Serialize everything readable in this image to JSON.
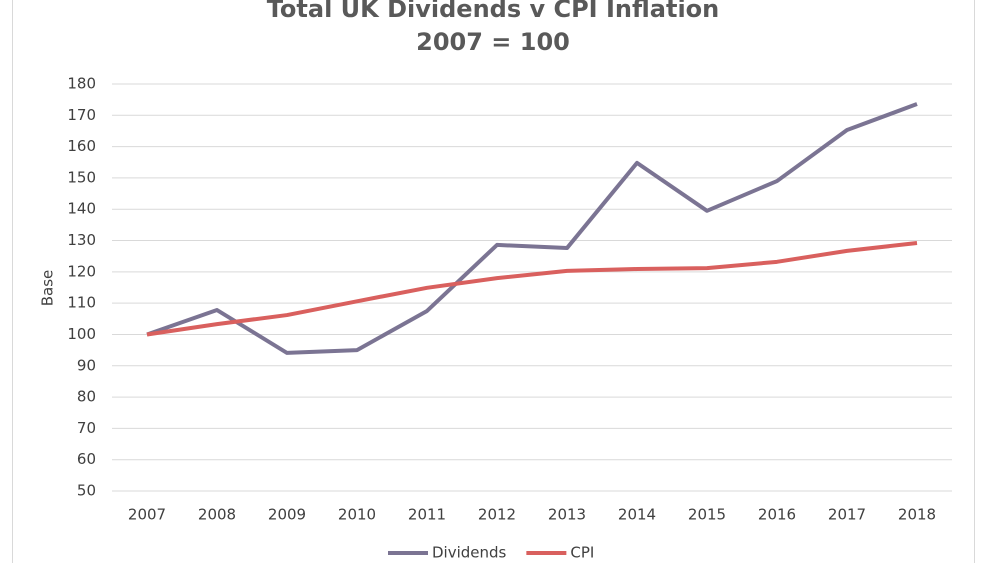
{
  "chart_data": {
    "type": "line",
    "title": "Total UK Dividends v CPI Inflation",
    "subtitle": "2007 = 100",
    "y_label": "Base",
    "categories": [
      "2007",
      "2008",
      "2009",
      "2010",
      "2011",
      "2012",
      "2013",
      "2014",
      "2015",
      "2016",
      "2017",
      "2018"
    ],
    "series": [
      {
        "name": "Dividends",
        "color": "#7b7493",
        "values": [
          100,
          107.8,
          94.1,
          95,
          107.5,
          128.6,
          127.6,
          154.8,
          139.5,
          149,
          165.3,
          173.6
        ]
      },
      {
        "name": "CPI",
        "color": "#d9605e",
        "values": [
          100,
          103.3,
          106.2,
          110.6,
          114.9,
          118,
          120.3,
          120.9,
          121.2,
          123.2,
          126.7,
          129.2
        ]
      }
    ],
    "ylim": [
      50,
      180
    ],
    "yticks": [
      50,
      60,
      70,
      80,
      90,
      100,
      110,
      120,
      130,
      140,
      150,
      160,
      170,
      180
    ],
    "grid": true,
    "legend": "bottom"
  }
}
